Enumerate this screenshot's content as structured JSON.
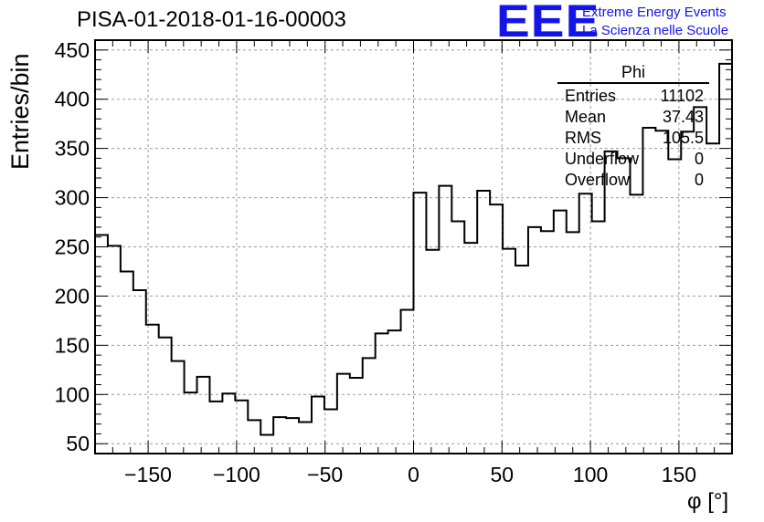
{
  "header": {
    "title": "PISA-01-2018-01-16-00003",
    "logo_mark": "EEE",
    "logo_line1": "Extreme Energy Events",
    "logo_line2": "La Scienza nelle Scuole"
  },
  "stats_box": {
    "name": "Phi",
    "rows": [
      {
        "key": "Entries",
        "value": "11102"
      },
      {
        "key": "Mean",
        "value": "37.43"
      },
      {
        "key": "RMS",
        "value": "105.5"
      },
      {
        "key": "Underflow",
        "value": "0"
      },
      {
        "key": "Overflow",
        "value": "0"
      }
    ]
  },
  "chart_data": {
    "type": "bar",
    "style": "step histogram",
    "title": "PISA-01-2018-01-16-00003",
    "xlabel": "φ [°]",
    "ylabel": "Entries/bin",
    "xlim": [
      -180,
      180
    ],
    "ylim": [
      40,
      460
    ],
    "bin_width": 7.2,
    "xticks": [
      -150,
      -100,
      -50,
      0,
      50,
      100,
      150
    ],
    "yticks": [
      50,
      100,
      150,
      200,
      250,
      300,
      350,
      400,
      450
    ],
    "grid": true,
    "values": [
      262,
      251,
      225,
      206,
      171,
      158,
      134,
      102,
      118,
      93,
      101,
      94,
      74,
      59,
      77,
      76,
      72,
      98,
      85,
      121,
      117,
      137,
      162,
      165,
      186,
      305,
      247,
      312,
      276,
      254,
      307,
      293,
      248,
      231,
      270,
      266,
      287,
      265,
      304,
      276,
      347,
      340,
      303,
      371,
      368,
      339,
      367,
      392,
      355,
      436
    ],
    "line_color": "#000000",
    "grid_color": "#9a9a9a"
  }
}
